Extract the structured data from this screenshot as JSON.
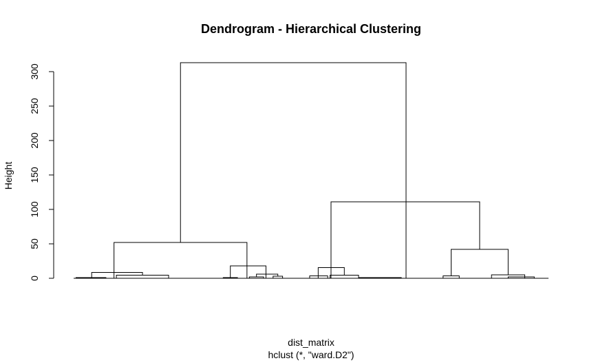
{
  "chart_data": {
    "type": "dendrogram",
    "title": "Dendrogram - Hierarchical Clustering",
    "xlabel": "dist_matrix",
    "sublabel": "hclust (*, \"ward.D2\")",
    "ylabel": "Height",
    "ylim": [
      0,
      320
    ],
    "yticks": [
      0,
      50,
      100,
      150,
      200,
      250,
      300
    ],
    "merges": [
      {
        "x1": 0.225,
        "x2": 0.7,
        "h": 313
      },
      {
        "x1": 0.085,
        "x2": 0.365,
        "h": 52
      },
      {
        "x1": 0.542,
        "x2": 0.855,
        "h": 111
      },
      {
        "x1": 0.038,
        "x2": 0.145,
        "h": 8.5
      },
      {
        "x1": 0.33,
        "x2": 0.405,
        "h": 18
      },
      {
        "x1": 0.515,
        "x2": 0.57,
        "h": 15.5
      },
      {
        "x1": 0.795,
        "x2": 0.915,
        "h": 42
      },
      {
        "x1": 0.005,
        "x2": 0.068,
        "h": 1
      },
      {
        "x1": 0.09,
        "x2": 0.2,
        "h": 4.5
      },
      {
        "x1": 0.315,
        "x2": 0.345,
        "h": 1
      },
      {
        "x1": 0.385,
        "x2": 0.43,
        "h": 6
      },
      {
        "x1": 0.37,
        "x2": 0.4,
        "h": 2
      },
      {
        "x1": 0.42,
        "x2": 0.44,
        "h": 3
      },
      {
        "x1": 0.497,
        "x2": 0.535,
        "h": 3.5
      },
      {
        "x1": 0.54,
        "x2": 0.6,
        "h": 4.5
      },
      {
        "x1": 0.6,
        "x2": 0.69,
        "h": 1
      },
      {
        "x1": 0.778,
        "x2": 0.812,
        "h": 3.5
      },
      {
        "x1": 0.88,
        "x2": 0.95,
        "h": 5
      },
      {
        "x1": 0.915,
        "x2": 0.97,
        "h": 2
      }
    ]
  }
}
